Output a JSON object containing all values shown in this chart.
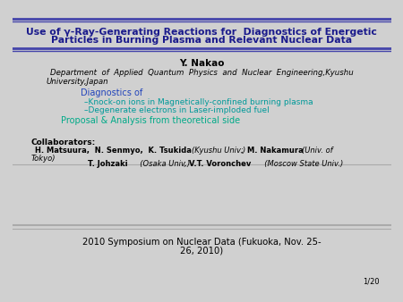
{
  "bg_color": "#d0d0d0",
  "slide_bg": "#ffffff",
  "title_line1": "Use of γ-Ray-Generating Reactions for  Diagnostics of Energetic",
  "title_line2": "Particles in Burning Plasma and Relevant Nuclear Data",
  "title_color": "#1a1a8c",
  "title_bar_color": "#5555aa",
  "author": "Y. Nakao",
  "affiliation1": "Department  of  Applied  Quantum  Physics  and  Nuclear  Engineering,Kyushu",
  "affiliation2": "University,Japan",
  "diag_header": "Diagnostics of",
  "diag_item1": "–Knock-on ions in Magnetically-confined burning plasma",
  "diag_item2": "–Degenerate electrons in Laser-imploded fuel",
  "proposal": "Proposal & Analysis from theoretical side",
  "collab_header": "Collaborators:",
  "footer": "2010 Symposium on Nuclear Data (Fukuoka, Nov. 25-",
  "footer2": "26, 2010)",
  "page": "1/20",
  "teal_color": "#009999",
  "diag_color": "#2244bb",
  "proposal_color": "#00aa88",
  "black": "#000000",
  "dark_blue": "#1a1a8c",
  "bar_blue": "#4444aa"
}
